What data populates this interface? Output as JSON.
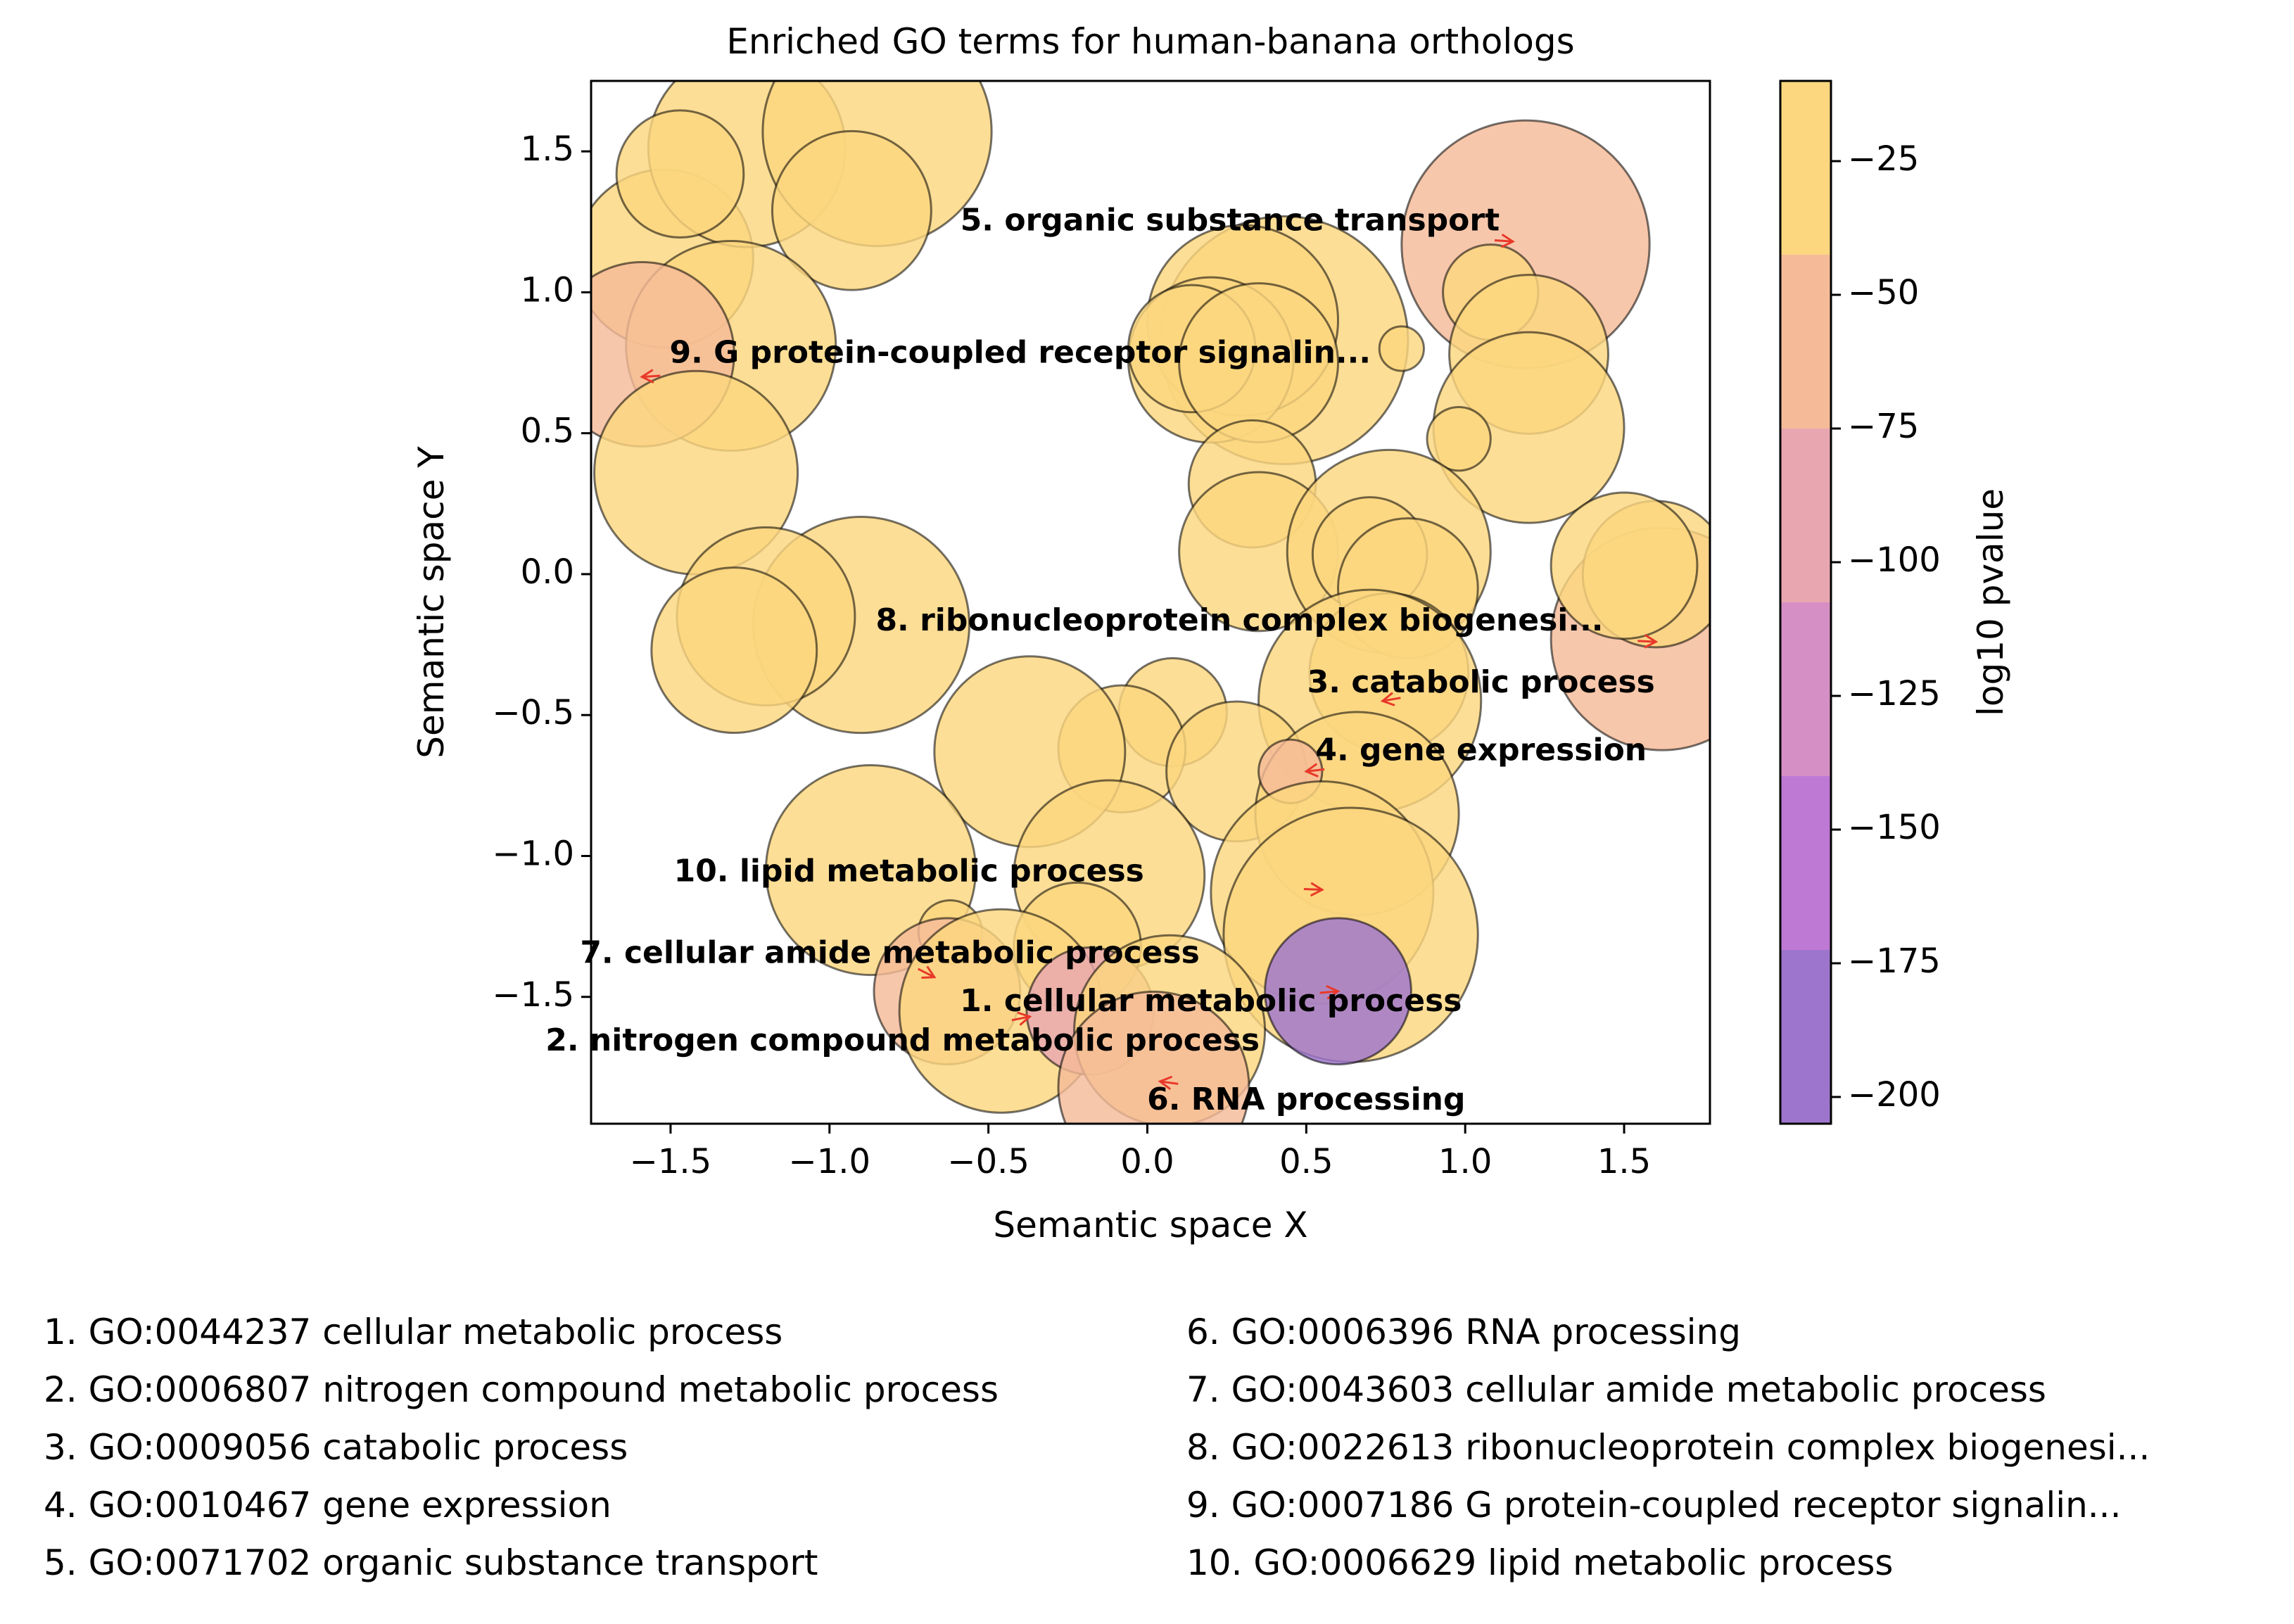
{
  "chart_data": {
    "type": "scatter",
    "title": "Enriched GO terms for human-banana orthologs",
    "xlabel": "Semantic space X",
    "ylabel": "Semantic space Y",
    "xlim": [
      -1.75,
      1.77
    ],
    "ylim": [
      -1.95,
      1.75
    ],
    "xticks": [
      -1.5,
      -1.0,
      -0.5,
      0.0,
      0.5,
      1.0,
      1.5
    ],
    "xtick_labels": [
      "−1.5",
      "−1.0",
      "−0.5",
      "0.0",
      "0.5",
      "1.0",
      "1.5"
    ],
    "yticks": [
      1.5,
      1.0,
      0.5,
      0.0,
      -0.5,
      -1.0,
      -1.5
    ],
    "ytick_labels": [
      "1.5",
      "1.0",
      "0.5",
      "0.0",
      "−0.5",
      "−1.0",
      "−1.5"
    ],
    "grid": false,
    "colorbar": {
      "label": "log10 pvalue",
      "range": [
        -205,
        -10
      ],
      "ticks": [
        -25,
        -50,
        -75,
        -100,
        -125,
        -150,
        -175,
        -200
      ],
      "tick_labels": [
        "−25",
        "−50",
        "−75",
        "−100",
        "−125",
        "−150",
        "−175",
        "−200"
      ],
      "bands": [
        "#fcd77f",
        "#f5bb98",
        "#e8a7b0",
        "#d68fc4",
        "#be79d5",
        "#9d75cd"
      ]
    },
    "points": [
      {
        "x": -1.52,
        "y": 1.12,
        "r": 0.28,
        "p": -20
      },
      {
        "x": -1.26,
        "y": 1.51,
        "r": 0.31,
        "p": -18
      },
      {
        "x": -0.85,
        "y": 1.57,
        "r": 0.36,
        "p": -20
      },
      {
        "x": -0.93,
        "y": 1.29,
        "r": 0.25,
        "p": -22
      },
      {
        "x": -1.47,
        "y": 1.42,
        "r": 0.2,
        "p": -18
      },
      {
        "x": -1.31,
        "y": 0.81,
        "r": 0.33,
        "p": -22
      },
      {
        "x": -1.59,
        "y": 0.78,
        "r": 0.29,
        "p": -48
      },
      {
        "x": -1.42,
        "y": 0.36,
        "r": 0.32,
        "p": -20
      },
      {
        "x": -0.9,
        "y": -0.18,
        "r": 0.34,
        "p": -20
      },
      {
        "x": -1.2,
        "y": -0.15,
        "r": 0.28,
        "p": -18
      },
      {
        "x": -1.3,
        "y": -0.27,
        "r": 0.26,
        "p": -16
      },
      {
        "x": 0.43,
        "y": 0.83,
        "r": 0.39,
        "p": -22
      },
      {
        "x": 0.3,
        "y": 0.9,
        "r": 0.3,
        "p": -18
      },
      {
        "x": 0.2,
        "y": 0.76,
        "r": 0.26,
        "p": -15
      },
      {
        "x": 0.14,
        "y": 0.8,
        "r": 0.2,
        "p": -16
      },
      {
        "x": 0.35,
        "y": 0.75,
        "r": 0.25,
        "p": -20
      },
      {
        "x": 0.8,
        "y": 0.8,
        "r": 0.07,
        "p": -20
      },
      {
        "x": 1.19,
        "y": 1.17,
        "r": 0.39,
        "p": -55
      },
      {
        "x": 1.08,
        "y": 1.0,
        "r": 0.15,
        "p": -35
      },
      {
        "x": 1.2,
        "y": 0.78,
        "r": 0.25,
        "p": -20
      },
      {
        "x": 1.2,
        "y": 0.52,
        "r": 0.3,
        "p": -22
      },
      {
        "x": 0.98,
        "y": 0.48,
        "r": 0.1,
        "p": -20
      },
      {
        "x": 0.33,
        "y": 0.32,
        "r": 0.2,
        "p": -20
      },
      {
        "x": 0.35,
        "y": 0.08,
        "r": 0.25,
        "p": -22
      },
      {
        "x": 0.76,
        "y": 0.08,
        "r": 0.32,
        "p": -20
      },
      {
        "x": 0.7,
        "y": 0.07,
        "r": 0.18,
        "p": -18
      },
      {
        "x": 0.82,
        "y": -0.05,
        "r": 0.22,
        "p": -15
      },
      {
        "x": 0.76,
        "y": -0.35,
        "r": 0.25,
        "p": -20
      },
      {
        "x": 0.7,
        "y": -0.45,
        "r": 0.35,
        "p": -42
      },
      {
        "x": 1.62,
        "y": -0.23,
        "r": 0.35,
        "p": -50
      },
      {
        "x": 1.6,
        "y": 0.0,
        "r": 0.23,
        "p": -18
      },
      {
        "x": 1.5,
        "y": 0.03,
        "r": 0.23,
        "p": -25
      },
      {
        "x": 0.08,
        "y": -0.49,
        "r": 0.17,
        "p": -18
      },
      {
        "x": -0.08,
        "y": -0.62,
        "r": 0.2,
        "p": -20
      },
      {
        "x": -0.37,
        "y": -0.63,
        "r": 0.3,
        "p": -18
      },
      {
        "x": 0.28,
        "y": -0.7,
        "r": 0.22,
        "p": -20
      },
      {
        "x": 0.66,
        "y": -0.85,
        "r": 0.32,
        "p": -20
      },
      {
        "x": 0.45,
        "y": -0.7,
        "r": 0.1,
        "p": -50
      },
      {
        "x": -0.87,
        "y": -1.05,
        "r": 0.33,
        "p": -20
      },
      {
        "x": -0.12,
        "y": -1.07,
        "r": 0.3,
        "p": -20
      },
      {
        "x": 0.55,
        "y": -1.13,
        "r": 0.35,
        "p": -22
      },
      {
        "x": 0.64,
        "y": -1.28,
        "r": 0.4,
        "p": -20
      },
      {
        "x": -0.22,
        "y": -1.32,
        "r": 0.2,
        "p": -20
      },
      {
        "x": -0.62,
        "y": -1.27,
        "r": 0.1,
        "p": -20
      },
      {
        "x": -0.63,
        "y": -1.48,
        "r": 0.23,
        "p": -45
      },
      {
        "x": -0.46,
        "y": -1.55,
        "r": 0.32,
        "p": -20
      },
      {
        "x": -0.18,
        "y": -1.55,
        "r": 0.2,
        "p": -90
      },
      {
        "x": 0.07,
        "y": -1.62,
        "r": 0.3,
        "p": -15
      },
      {
        "x": 0.02,
        "y": -1.82,
        "r": 0.3,
        "p": -50
      },
      {
        "x": 0.6,
        "y": -1.48,
        "r": 0.23,
        "p": -200
      }
    ],
    "annotations": [
      {
        "label": "1. cellular metabolic process",
        "tx": 0.2,
        "ty": -1.52,
        "ax": 0.6,
        "ay": -1.48
      },
      {
        "label": "2. nitrogen compound metabolic process",
        "tx": -0.77,
        "ty": -1.66,
        "ax": -0.37,
        "ay": -1.57
      },
      {
        "label": "3. catabolic process",
        "tx": 1.05,
        "ty": -0.39,
        "ax": 0.74,
        "ay": -0.45
      },
      {
        "label": "4. gene expression",
        "tx": 1.05,
        "ty": -0.63,
        "ax": 0.5,
        "ay": -0.7
      },
      {
        "label": "5. organic substance transport",
        "tx": 0.26,
        "ty": 1.25,
        "ax": 1.15,
        "ay": 1.18
      },
      {
        "label": "6. RNA processing",
        "tx": 0.5,
        "ty": -1.87,
        "ax": 0.04,
        "ay": -1.8
      },
      {
        "label": "7. cellular amide metabolic process",
        "tx": -0.81,
        "ty": -1.35,
        "ax": -0.67,
        "ay": -1.43
      },
      {
        "label": "8. ribonucleoprotein complex biogenesi...",
        "tx": 0.29,
        "ty": -0.17,
        "ax": 1.6,
        "ay": -0.24
      },
      {
        "label": "9. G protein-coupled receptor signalin...",
        "tx": -0.4,
        "ty": 0.78,
        "ax": -1.59,
        "ay": 0.7
      },
      {
        "label": "10. lipid metabolic process",
        "tx": -0.75,
        "ty": -1.06,
        "ax": 0.55,
        "ay": -1.12
      }
    ],
    "legend_items": [
      "1. GO:0044237 cellular metabolic process",
      "2. GO:0006807 nitrogen compound metabolic process",
      "3. GO:0009056 catabolic process",
      "4. GO:0010467 gene expression",
      "5. GO:0071702 organic substance transport",
      "6. GO:0006396 RNA processing",
      "7. GO:0043603 cellular amide metabolic process",
      "8. GO:0022613 ribonucleoprotein complex biogenesi...",
      "9. GO:0007186 G protein-coupled receptor signalin...",
      "10. GO:0006629 lipid metabolic process"
    ]
  }
}
